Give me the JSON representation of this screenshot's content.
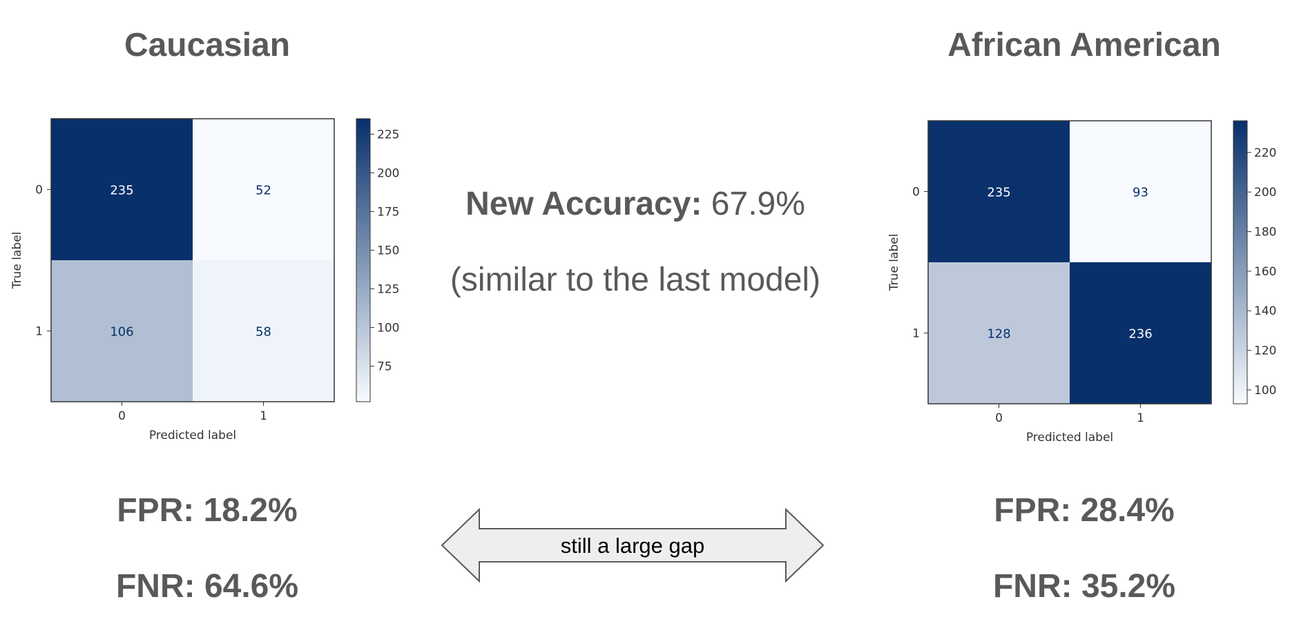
{
  "left": {
    "title": "Caucasian",
    "fpr_label": "FPR:",
    "fpr_value": "18.2%",
    "fnr_label": "FNR:",
    "fnr_value": "64.6%"
  },
  "right": {
    "title": "African American",
    "fpr_label": "FPR:",
    "fpr_value": "28.4%",
    "fnr_label": "FNR:",
    "fnr_value": "35.2%"
  },
  "center": {
    "accuracy_label": "New Accuracy:",
    "accuracy_value": "67.9%",
    "note": "(similar to the last model)",
    "arrow_text": "still a large gap"
  },
  "chart_data": [
    {
      "type": "heatmap",
      "xlabel": "Predicted label",
      "ylabel": "True label",
      "x_categories": [
        "0",
        "1"
      ],
      "y_categories": [
        "0",
        "1"
      ],
      "values": [
        [
          235,
          52
        ],
        [
          106,
          58
        ]
      ],
      "colorbar": {
        "min": 52,
        "max": 235,
        "ticks": [
          75,
          100,
          125,
          150,
          175,
          200,
          225
        ],
        "colormap": "Blues"
      }
    },
    {
      "type": "heatmap",
      "xlabel": "Predicted label",
      "ylabel": "True label",
      "x_categories": [
        "0",
        "1"
      ],
      "y_categories": [
        "0",
        "1"
      ],
      "values": [
        [
          235,
          93
        ],
        [
          128,
          236
        ]
      ],
      "colorbar": {
        "min": 93,
        "max": 236,
        "ticks": [
          100,
          120,
          140,
          160,
          180,
          200,
          220
        ],
        "colormap": "Blues"
      }
    }
  ]
}
